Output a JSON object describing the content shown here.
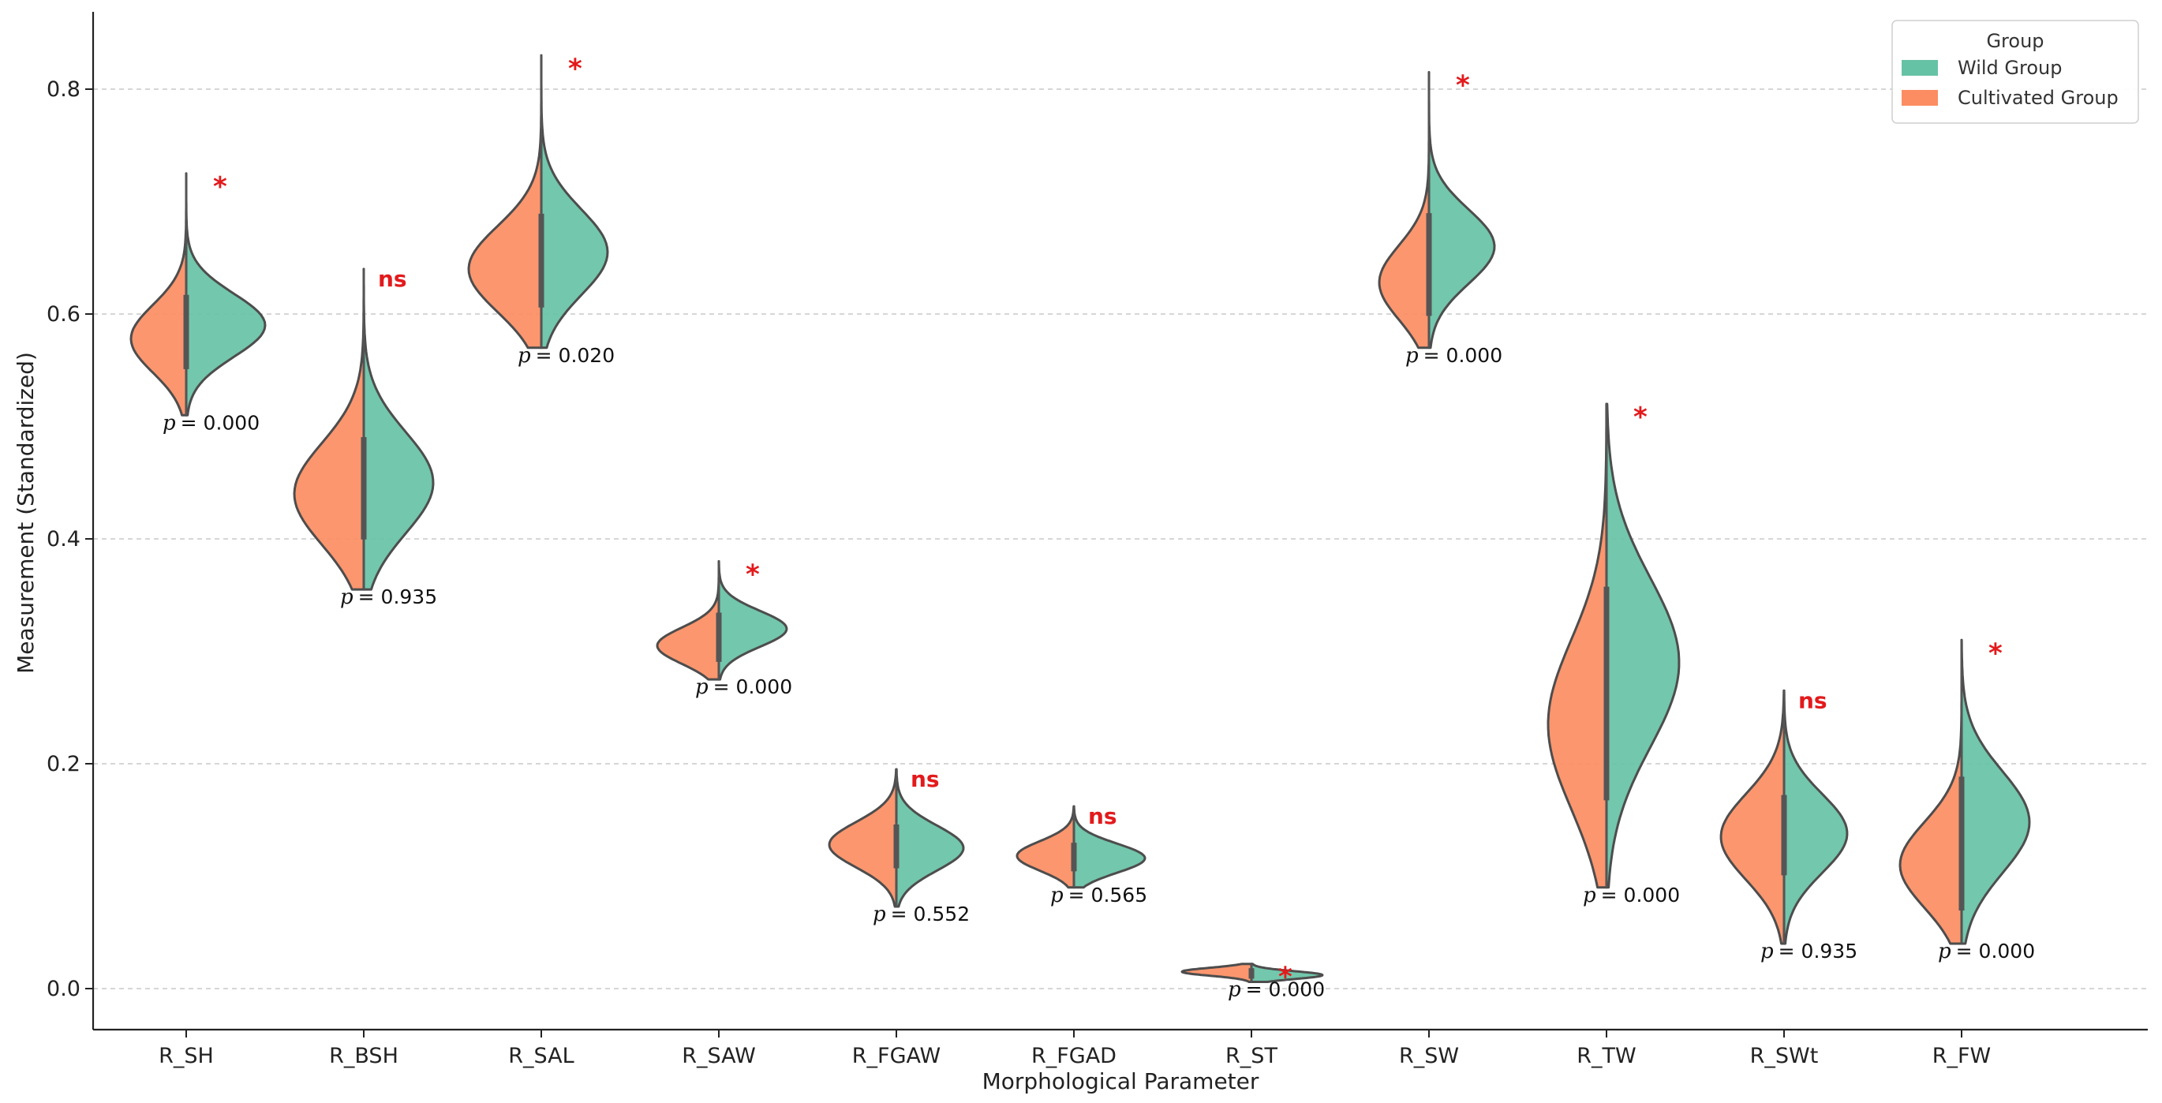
{
  "chart_data": {
    "type": "violin",
    "split": true,
    "xlabel": "Morphological Parameter",
    "ylabel": "Measurement (Standardized)",
    "ylim": [
      -0.035,
      0.87
    ],
    "yticks": [
      0.0,
      0.2,
      0.4,
      0.6,
      0.8
    ],
    "ytick_labels": [
      "0.0",
      "0.2",
      "0.4",
      "0.6",
      "0.8"
    ],
    "grid": "horizontal dashed",
    "legend": {
      "title": "Group",
      "placement": "top-right",
      "entries": [
        {
          "name": "Wild Group",
          "color": "#66c2a5",
          "side": "right"
        },
        {
          "name": "Cultivated Group",
          "color": "#fc8d62",
          "side": "left"
        }
      ]
    },
    "outline_color": "#4d4d4d",
    "significance_color": "#e31a1c",
    "p_prefix": "p",
    "categories": [
      {
        "name": "R_SH",
        "p_value": "= 0.000",
        "sig": "*",
        "min": 0.51,
        "max": 0.725,
        "cultivated": {
          "mode": 0.578,
          "sd": 0.03,
          "width": 0.7
        },
        "wild": {
          "mode": 0.59,
          "sd": 0.028,
          "width": 1.0
        }
      },
      {
        "name": "R_BSH",
        "p_value": "= 0.935",
        "sig": "ns",
        "min": 0.355,
        "max": 0.64,
        "cultivated": {
          "mode": 0.44,
          "sd": 0.045,
          "width": 0.88
        },
        "wild": {
          "mode": 0.45,
          "sd": 0.045,
          "width": 0.88
        }
      },
      {
        "name": "R_SAL",
        "p_value": "= 0.020",
        "sig": "*",
        "min": 0.57,
        "max": 0.83,
        "cultivated": {
          "mode": 0.64,
          "sd": 0.038,
          "width": 0.92
        },
        "wild": {
          "mode": 0.655,
          "sd": 0.038,
          "width": 0.84
        }
      },
      {
        "name": "R_SAW",
        "p_value": "= 0.000",
        "sig": "*",
        "min": 0.275,
        "max": 0.38,
        "cultivated": {
          "mode": 0.305,
          "sd": 0.016,
          "width": 0.78
        },
        "wild": {
          "mode": 0.32,
          "sd": 0.016,
          "width": 0.86
        }
      },
      {
        "name": "R_FGAW",
        "p_value": "= 0.552",
        "sig": "ns",
        "min": 0.073,
        "max": 0.195,
        "cultivated": {
          "mode": 0.128,
          "sd": 0.02,
          "width": 0.85
        },
        "wild": {
          "mode": 0.125,
          "sd": 0.02,
          "width": 0.85
        }
      },
      {
        "name": "R_FGAD",
        "p_value": "= 0.565",
        "sig": "ns",
        "min": 0.09,
        "max": 0.162,
        "cultivated": {
          "mode": 0.118,
          "sd": 0.013,
          "width": 0.72
        },
        "wild": {
          "mode": 0.116,
          "sd": 0.013,
          "width": 0.9
        }
      },
      {
        "name": "R_ST",
        "p_value": "= 0.000",
        "sig": "*",
        "min": 0.006,
        "max": 0.022,
        "cultivated": {
          "mode": 0.015,
          "sd": 0.0035,
          "width": 0.88
        },
        "wild": {
          "mode": 0.012,
          "sd": 0.0035,
          "width": 0.9
        }
      },
      {
        "name": "R_SW",
        "p_value": "= 0.000",
        "sig": "*",
        "min": 0.57,
        "max": 0.815,
        "cultivated": {
          "mode": 0.628,
          "sd": 0.033,
          "width": 0.63
        },
        "wild": {
          "mode": 0.66,
          "sd": 0.033,
          "width": 0.83
        }
      },
      {
        "name": "R_TW",
        "p_value": "= 0.000",
        "sig": "*",
        "min": 0.09,
        "max": 0.52,
        "cultivated": {
          "mode": 0.235,
          "sd": 0.075,
          "width": 0.74
        },
        "wild": {
          "mode": 0.29,
          "sd": 0.075,
          "width": 0.92
        }
      },
      {
        "name": "R_SWt",
        "p_value": "= 0.935",
        "sig": "ns",
        "min": 0.04,
        "max": 0.265,
        "cultivated": {
          "mode": 0.135,
          "sd": 0.038,
          "width": 0.8
        },
        "wild": {
          "mode": 0.138,
          "sd": 0.035,
          "width": 0.8
        }
      },
      {
        "name": "R_FW",
        "p_value": "= 0.000",
        "sig": "*",
        "min": 0.04,
        "max": 0.31,
        "cultivated": {
          "mode": 0.11,
          "sd": 0.038,
          "width": 0.78
        },
        "wild": {
          "mode": 0.148,
          "sd": 0.045,
          "width": 0.86
        }
      }
    ]
  }
}
